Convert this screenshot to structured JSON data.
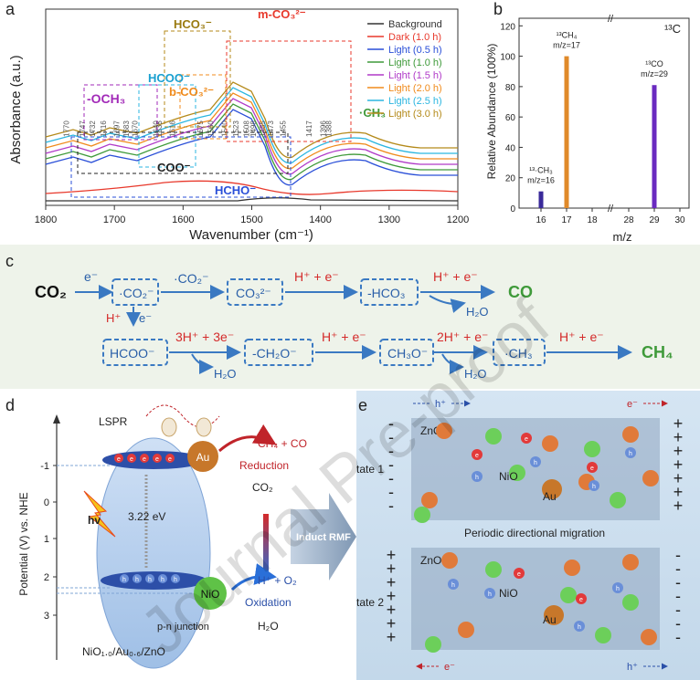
{
  "panels": {
    "a": "a",
    "b": "b",
    "c": "c",
    "d": "d",
    "e": "e"
  },
  "panel_a": {
    "ylabel": "Absorbance (a.u.)",
    "xlabel": "Wavenumber (cm⁻¹)",
    "xticks": [
      "1800",
      "1700",
      "1600",
      "1500",
      "1400",
      "1300",
      "1200"
    ],
    "legend": [
      "Background",
      "Dark (1.0 h)",
      "Light (0.5 h)",
      "Light (1.0 h)",
      "Light (1.5 h)",
      "Light (2.0 h)",
      "Light (2.5 h)",
      "Light (3.0 h)"
    ],
    "legend_colors": [
      "#333333",
      "#e8392c",
      "#2a4fd8",
      "#3f9a3a",
      "#b03ac8",
      "#f08b1d",
      "#2bb6e0",
      "#b48a1a"
    ],
    "group_labels": {
      "och3": "-OCH₃",
      "hcoo": "HCOO⁻",
      "bco3": "b-CO₃²⁻",
      "hco3": "HCO₃⁻",
      "mco3": "m-CO₃²⁻",
      "ch3": "·CH₃",
      "coo": "COO⁻",
      "hcho": "HCHO⁻"
    },
    "peaks": [
      "1770",
      "1747",
      "1732",
      "1716",
      "1697",
      "1683",
      "1670",
      "1640",
      "1635",
      "1616",
      "1575",
      "1560",
      "1540",
      "1523",
      "1508",
      "1498",
      "1485",
      "1473",
      "1455",
      "1417",
      "1396",
      "1388"
    ]
  },
  "chart_data": [
    {
      "type": "bar",
      "xlabel": "m/z",
      "ylabel": "Relative Abundance (100%)",
      "ylim": [
        0,
        125
      ],
      "yticks": [
        "0",
        "20",
        "40",
        "60",
        "80",
        "100",
        "120"
      ],
      "xticks": [
        "16",
        "17",
        "18",
        "28",
        "29",
        "30"
      ],
      "corner_label": "¹³C",
      "bars": [
        {
          "x": "16",
          "value": 11,
          "label": "¹³·CH₃",
          "sub": "m/z=16",
          "color": "#3a2a9a"
        },
        {
          "x": "17",
          "value": 100,
          "label": "¹³CH₄",
          "sub": "m/z=17",
          "color": "#e08a2a"
        },
        {
          "x": "29",
          "value": 81,
          "label": "¹³CO",
          "sub": "m/z=29",
          "color": "#6a2ac0"
        }
      ]
    }
  ],
  "panel_c": {
    "co2": "CO₂",
    "e": "e⁻",
    "box_co2": "·CO₂⁻",
    "mid_co2": "·CO₂⁻",
    "box_co3": "CO₃²⁻",
    "hplus_e": "H⁺ + e⁻",
    "box_hco3": "-HCO₃",
    "h2o": "H₂O",
    "co": "CO",
    "down_h": "H⁺",
    "down_e": "e⁻",
    "box_hcoo": "HCOO⁻",
    "step_3h": "3H⁺ + 3e⁻",
    "box_ch2o": "-CH₂O⁻",
    "box_ch3o": "CH₃O⁻",
    "step_2h": "2H⁺ + e⁻",
    "box_ch3": "·CH₃",
    "ch4": "CH₄"
  },
  "panel_d": {
    "ylabel": "Potential (V) vs. NHE",
    "yticks": [
      "-1",
      "0",
      "1",
      "2",
      "3"
    ],
    "lspr": "LSPR",
    "au": "Au",
    "reduction_products": "CH₄ + CO",
    "reduction": "Reduction",
    "co2": "CO₂",
    "hv": "hv",
    "gap": "3.22 eV",
    "nio": "NiO",
    "oxidation_products": "H⁺ + O₂",
    "oxidation": "Oxidation",
    "h2o": "H₂O",
    "junction": "p-n junction",
    "material": "NiO₁.₀/Au₀.₆/ZnO",
    "arrow": "Induct RMF",
    "electron": "e",
    "hole": "h",
    "plus": "+",
    "minus": "-"
  },
  "panel_e": {
    "state1": "state 1",
    "state2": "state 2",
    "zno": "ZnO",
    "nio": "NiO",
    "au": "Au",
    "migration": "Periodic directional migration",
    "eminus": "e⁻",
    "hplus": "h⁺"
  },
  "watermark": "Journal Pre-proof"
}
